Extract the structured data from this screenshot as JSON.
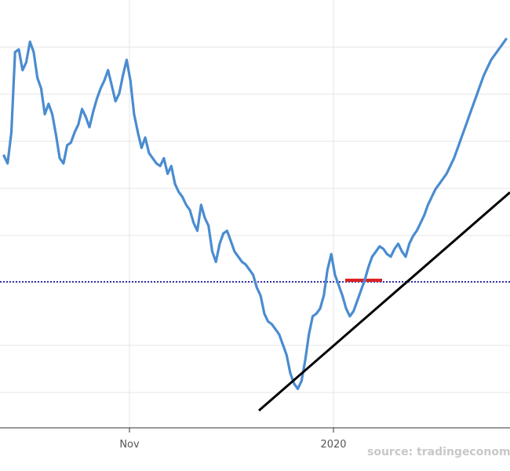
{
  "chart_data": {
    "type": "line",
    "title": "",
    "xlabel": "",
    "ylabel": "",
    "x_ticks": [
      "Nov",
      "2020"
    ],
    "grid": true,
    "source": "source: tradingeconomics.com",
    "colors": {
      "series": "#4a8cd0",
      "trendline": "#000000",
      "reference_line": "#3333aa",
      "marker": "#dd2222",
      "grid": "#e6e6e6",
      "axis": "#333333"
    },
    "series": [
      {
        "values": [
          59,
          56,
          68,
          99,
          100,
          92,
          95,
          103,
          99,
          89,
          85,
          75,
          79,
          75,
          67,
          58,
          56,
          63,
          64,
          68,
          71,
          77,
          74,
          70,
          76,
          81,
          85,
          88,
          92,
          86,
          80,
          83,
          90,
          96,
          88,
          75,
          68,
          62,
          66,
          60,
          58,
          56,
          55,
          58,
          52,
          55,
          48,
          45,
          43,
          40,
          38,
          33,
          30,
          40,
          35,
          32,
          22,
          18,
          25,
          29,
          30,
          26,
          22,
          20,
          18,
          17,
          15,
          13,
          8,
          5,
          -2,
          -5,
          -6,
          -8,
          -10,
          -14,
          -18,
          -25,
          -29,
          -31,
          -28,
          -20,
          -10,
          -3,
          -2,
          0,
          5,
          15,
          21,
          13,
          9,
          5,
          0,
          -3,
          -1,
          3,
          7,
          11,
          16,
          20,
          22,
          24,
          23,
          21,
          20,
          23,
          25,
          22,
          20,
          25,
          28,
          30,
          33,
          36,
          40,
          43,
          46,
          48,
          50,
          52,
          55,
          58,
          62,
          66,
          70,
          74,
          78,
          82,
          86,
          90,
          93,
          96,
          98,
          100,
          102,
          104
        ]
      }
    ],
    "trendline": {
      "from": 0.51,
      "to": 1.0
    },
    "reference_level": 0.5
  }
}
